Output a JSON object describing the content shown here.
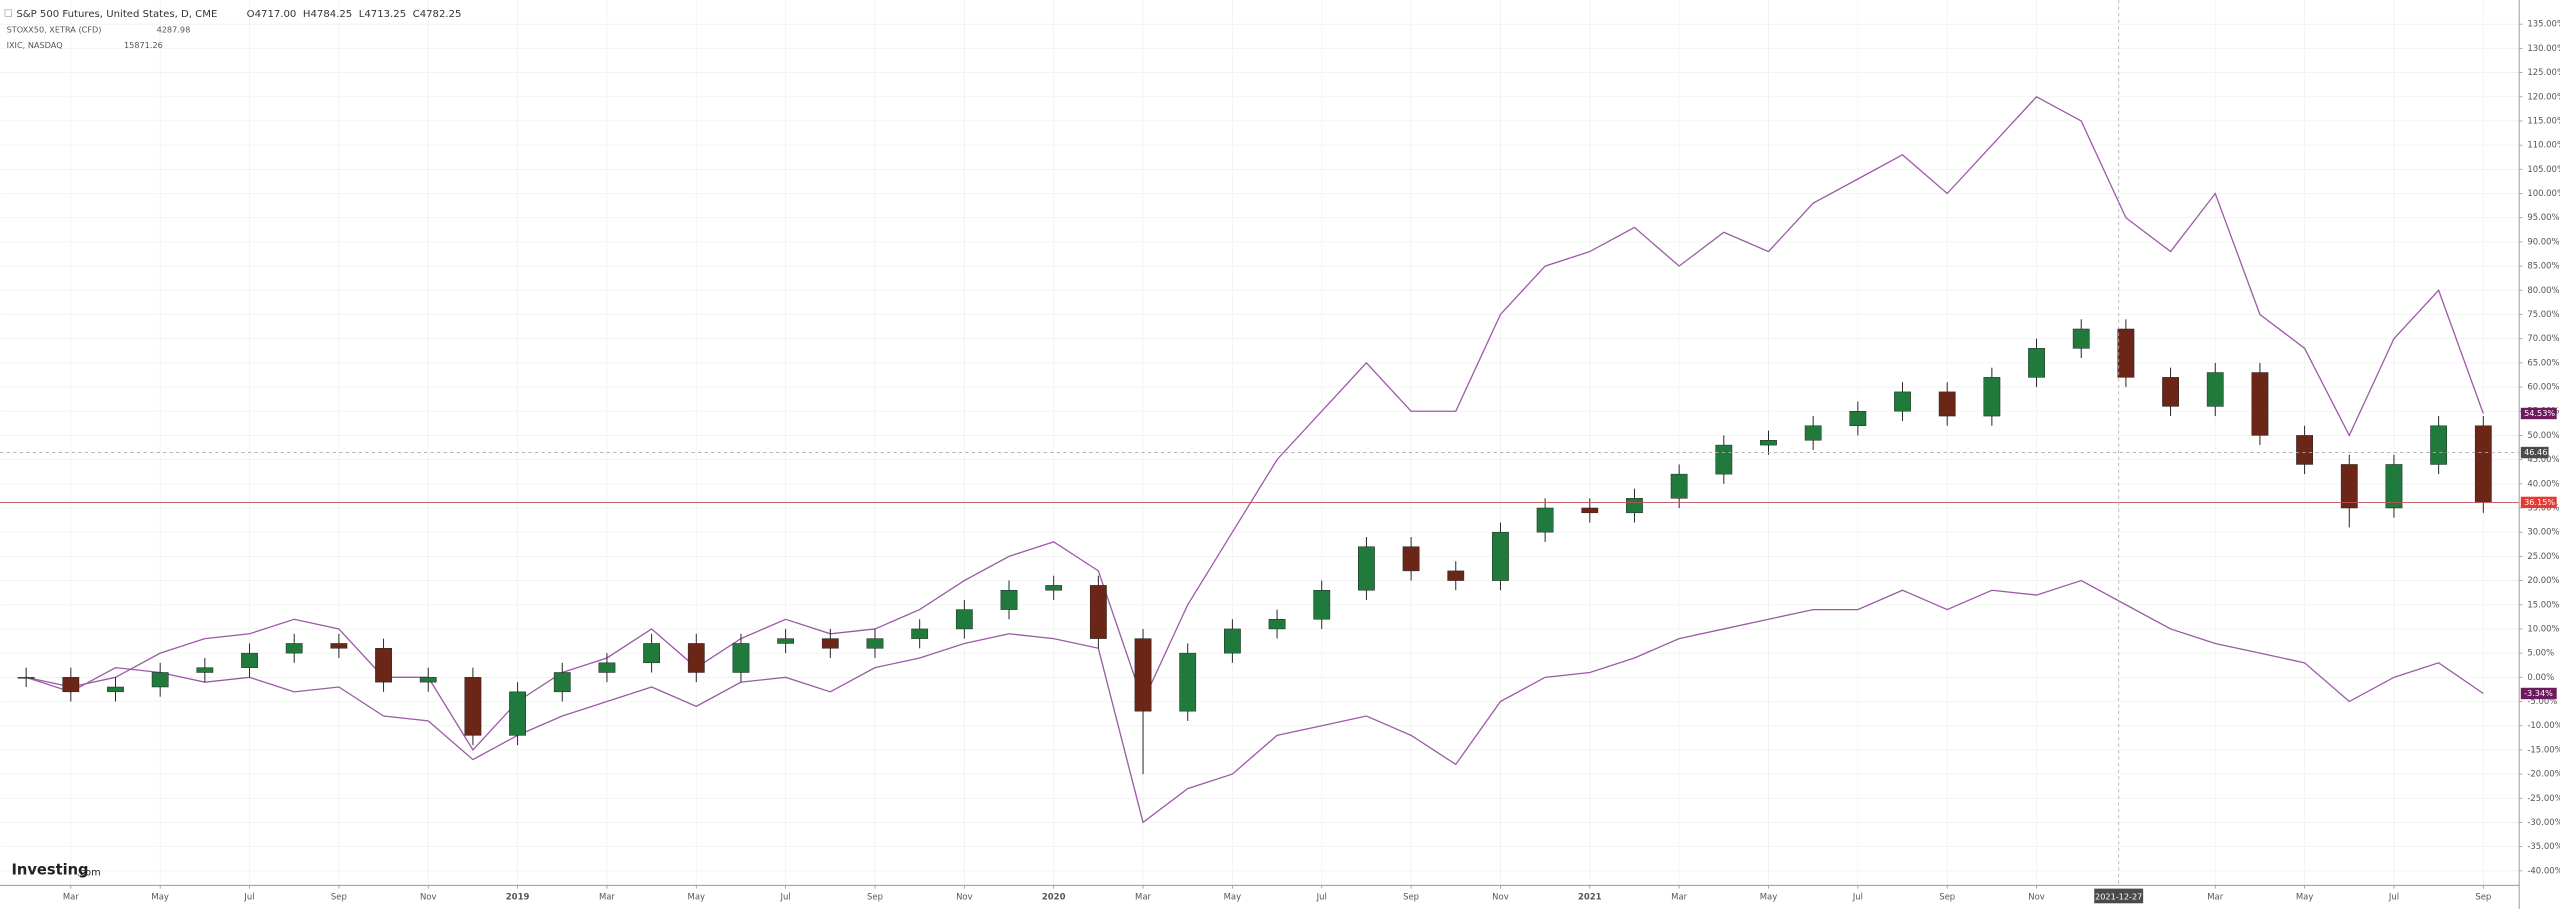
{
  "chart_data": {
    "type": "candlestick",
    "x": [
      "2018-02",
      "2018-03",
      "2018-04",
      "2018-05",
      "2018-06",
      "2018-07",
      "2018-08",
      "2018-09",
      "2018-10",
      "2018-11",
      "2018-12",
      "2019-01",
      "2019-02",
      "2019-03",
      "2019-04",
      "2019-05",
      "2019-06",
      "2019-07",
      "2019-08",
      "2019-09",
      "2019-10",
      "2019-11",
      "2019-12",
      "2020-01",
      "2020-02",
      "2020-03",
      "2020-04",
      "2020-05",
      "2020-06",
      "2020-07",
      "2020-08",
      "2020-09",
      "2020-10",
      "2020-11",
      "2020-12",
      "2021-01",
      "2021-02",
      "2021-03",
      "2021-04",
      "2021-05",
      "2021-06",
      "2021-07",
      "2021-08",
      "2021-09",
      "2021-10",
      "2021-11",
      "2021-12",
      "2022-01",
      "2022-02",
      "2022-03",
      "2022-04",
      "2022-05",
      "2022-06",
      "2022-07",
      "2022-08",
      "2022-09"
    ],
    "ohlc": {
      "name": "S&P 500 Futures, United States, D, CME",
      "quote": [
        "O4717.00",
        "H4784.25",
        "L4713.25",
        "C4782.25"
      ],
      "up_color": "#1f7a3c",
      "down_color": "#6b2618",
      "open": [
        0,
        0,
        -3,
        -2,
        1,
        2,
        5,
        7,
        6,
        -1,
        0,
        -12,
        -3,
        1,
        3,
        7,
        1,
        7,
        8,
        6,
        8,
        10,
        14,
        18,
        19,
        8,
        -7,
        5,
        10,
        12,
        18,
        27,
        22,
        20,
        30,
        35,
        34,
        37,
        42,
        48,
        49,
        52,
        55,
        59,
        54,
        62,
        68,
        72,
        62,
        56,
        63,
        50,
        44,
        35,
        44,
        52
      ],
      "high": [
        2,
        2,
        0,
        3,
        4,
        7,
        9,
        9,
        8,
        2,
        2,
        -1,
        3,
        5,
        9,
        9,
        9,
        10,
        10,
        10,
        12,
        16,
        20,
        21,
        21,
        10,
        7,
        12,
        14,
        20,
        29,
        29,
        24,
        32,
        37,
        37,
        39,
        44,
        50,
        51,
        54,
        57,
        61,
        61,
        64,
        70,
        74,
        74,
        64,
        65,
        65,
        52,
        46,
        46,
        54,
        54
      ],
      "low": [
        -2,
        -5,
        -5,
        -4,
        -1,
        0,
        3,
        4,
        -3,
        -3,
        -14,
        -14,
        -5,
        -1,
        1,
        -1,
        -1,
        5,
        4,
        4,
        6,
        8,
        12,
        16,
        6,
        -20,
        -9,
        3,
        8,
        10,
        16,
        20,
        18,
        18,
        28,
        32,
        32,
        35,
        40,
        46,
        47,
        50,
        53,
        52,
        52,
        60,
        66,
        60,
        54,
        54,
        48,
        42,
        31,
        33,
        42,
        34
      ],
      "close": [
        0,
        -3,
        -2,
        1,
        2,
        5,
        7,
        6,
        -1,
        0,
        -12,
        -3,
        1,
        3,
        7,
        1,
        7,
        8,
        6,
        8,
        10,
        14,
        18,
        19,
        8,
        -7,
        5,
        10,
        12,
        18,
        27,
        22,
        20,
        30,
        35,
        34,
        37,
        42,
        48,
        49,
        52,
        55,
        59,
        54,
        62,
        68,
        72,
        62,
        56,
        63,
        50,
        44,
        35,
        44,
        52,
        36.15
      ],
      "last_label": "36.15%",
      "last_color": "#e53935"
    },
    "series": [
      {
        "name": "STOXX50, XETRA (CFD)",
        "price": "4287.98",
        "color": "#9c5aa6",
        "last_label": "-3.34%",
        "values": [
          0,
          -3,
          2,
          1,
          -1,
          0,
          -3,
          -2,
          -8,
          -9,
          -17,
          -12,
          -8,
          -5,
          -2,
          -6,
          -1,
          0,
          -3,
          2,
          4,
          7,
          9,
          8,
          6,
          -30,
          -23,
          -20,
          -12,
          -10,
          -8,
          -12,
          -18,
          -5,
          0,
          1,
          4,
          8,
          10,
          12,
          14,
          14,
          18,
          14,
          18,
          17,
          20,
          15,
          10,
          7,
          5,
          3,
          -5,
          0,
          3,
          -3.34
        ]
      },
      {
        "name": "IXIC, NASDAQ",
        "price": "15871.26",
        "color": "#9c5aa6",
        "last_label": "54.53%",
        "values": [
          0,
          -2,
          0,
          5,
          8,
          9,
          12,
          10,
          0,
          0,
          -15,
          -5,
          1,
          4,
          10,
          2,
          8,
          12,
          9,
          10,
          14,
          20,
          25,
          28,
          22,
          -5,
          15,
          30,
          45,
          55,
          65,
          55,
          55,
          75,
          85,
          88,
          93,
          85,
          92,
          88,
          98,
          103,
          108,
          100,
          110,
          120,
          115,
          95,
          88,
          100,
          75,
          68,
          50,
          70,
          80,
          54.53
        ]
      }
    ],
    "ylim": [
      -43,
      140
    ],
    "yticks": [
      {
        "value": -40,
        "label": "-40.00%"
      },
      {
        "value": -35,
        "label": "-35.00%"
      },
      {
        "value": -30,
        "label": "-30.00%"
      },
      {
        "value": -25,
        "label": "-25.00%"
      },
      {
        "value": -20,
        "label": "-20.00%"
      },
      {
        "value": -15,
        "label": "-15.00%"
      },
      {
        "value": -10,
        "label": "-10.00%"
      },
      {
        "value": -5,
        "label": "-5.00%"
      },
      {
        "value": 0,
        "label": "0.00%"
      },
      {
        "value": 5,
        "label": "5.00%"
      },
      {
        "value": 10,
        "label": "10.00%"
      },
      {
        "value": 15,
        "label": "15.00%"
      },
      {
        "value": 20,
        "label": "20.00%"
      },
      {
        "value": 25,
        "label": "25.00%"
      },
      {
        "value": 30,
        "label": "30.00%"
      },
      {
        "value": 35,
        "label": "35.00%"
      },
      {
        "value": 40,
        "label": "40.00%"
      },
      {
        "value": 45,
        "label": "45.00%"
      },
      {
        "value": 50,
        "label": "50.00%"
      },
      {
        "value": 55,
        "label": "55.00%"
      },
      {
        "value": 60,
        "label": "60.00%"
      },
      {
        "value": 65,
        "label": "65.00%"
      },
      {
        "value": 70,
        "label": "70.00%"
      },
      {
        "value": 75,
        "label": "75.00%"
      },
      {
        "value": 80,
        "label": "80.00%"
      },
      {
        "value": 85,
        "label": "85.00%"
      },
      {
        "value": 90,
        "label": "90.00%"
      },
      {
        "value": 95,
        "label": "95.00%"
      },
      {
        "value": 100,
        "label": "100.00%"
      },
      {
        "value": 105,
        "label": "105.00%"
      },
      {
        "value": 110,
        "label": "110.00%"
      },
      {
        "value": 115,
        "label": "115.00%"
      },
      {
        "value": 120,
        "label": "120.00%"
      },
      {
        "value": 125,
        "label": "125.00%"
      },
      {
        "value": 130,
        "label": "130.00%"
      },
      {
        "value": 135,
        "label": "135.00%"
      }
    ],
    "xticks": [
      {
        "value": "2018-03",
        "label": "Mar"
      },
      {
        "value": "2018-05",
        "label": "May"
      },
      {
        "value": "2018-07",
        "label": "Jul"
      },
      {
        "value": "2018-09",
        "label": "Sep"
      },
      {
        "value": "2018-11",
        "label": "Nov"
      },
      {
        "value": "2019-01",
        "label": "2019"
      },
      {
        "value": "2019-03",
        "label": "Mar"
      },
      {
        "value": "2019-05",
        "label": "May"
      },
      {
        "value": "2019-07",
        "label": "Jul"
      },
      {
        "value": "2019-09",
        "label": "Sep"
      },
      {
        "value": "2019-11",
        "label": "Nov"
      },
      {
        "value": "2020-01",
        "label": "2020"
      },
      {
        "value": "2020-03",
        "label": "Mar"
      },
      {
        "value": "2020-05",
        "label": "May"
      },
      {
        "value": "2020-07",
        "label": "Jul"
      },
      {
        "value": "2020-09",
        "label": "Sep"
      },
      {
        "value": "2020-11",
        "label": "Nov"
      },
      {
        "value": "2021-01",
        "label": "2021"
      },
      {
        "value": "2021-03",
        "label": "Mar"
      },
      {
        "value": "2021-05",
        "label": "May"
      },
      {
        "value": "2021-07",
        "label": "Jul"
      },
      {
        "value": "2021-09",
        "label": "Sep"
      },
      {
        "value": "2021-11",
        "label": "Nov"
      },
      {
        "value": "2022-03",
        "label": "Mar"
      },
      {
        "value": "2022-05",
        "label": "May"
      },
      {
        "value": "2022-07",
        "label": "Jul"
      },
      {
        "value": "2022-09",
        "label": "Sep"
      }
    ],
    "grid": true,
    "crosshair": {
      "x": "2021-12-27",
      "y": 46.46,
      "y_label": "46.46"
    },
    "logo": [
      "Investing",
      ".com"
    ]
  }
}
